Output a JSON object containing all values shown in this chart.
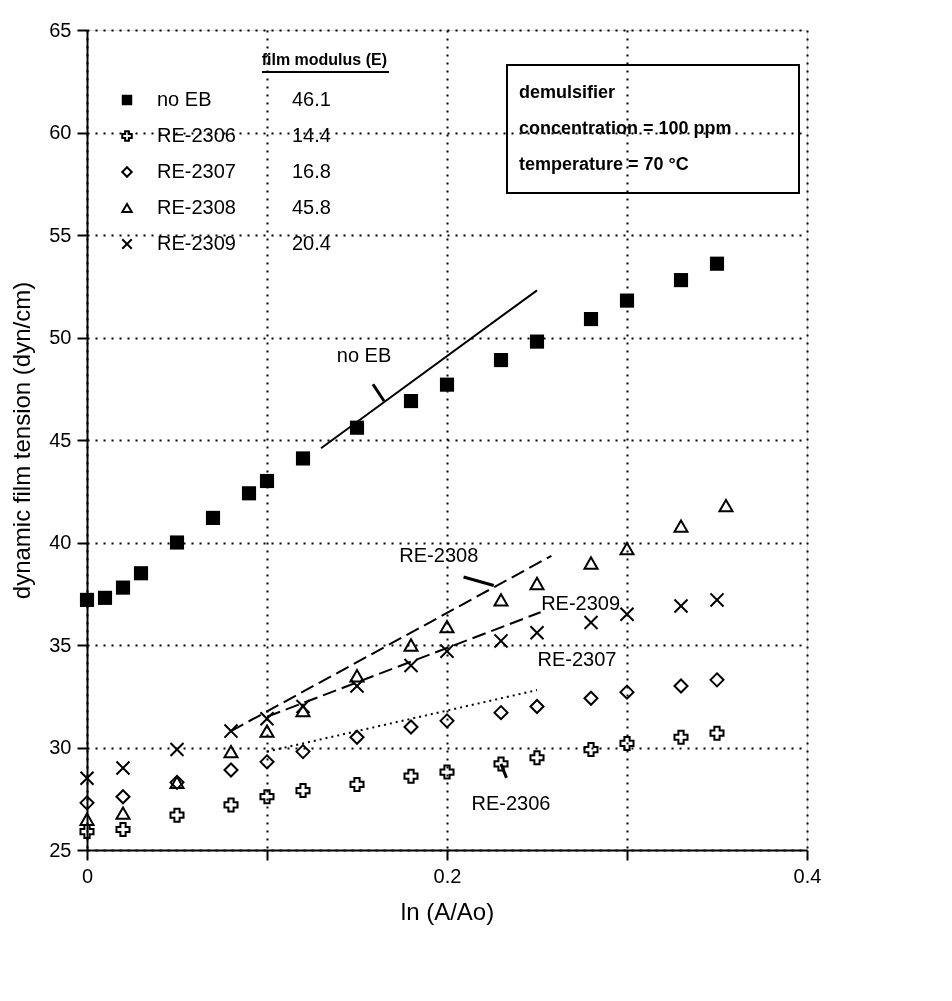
{
  "chart_data": {
    "type": "scatter",
    "xlabel": "ln (A/Ao)",
    "ylabel": "dynamic film tension (dyn/cm)",
    "xlim": [
      0,
      0.4
    ],
    "xticks": [
      0,
      {
        "value": 0.1,
        "label": null
      },
      0.2,
      {
        "value": 0.3,
        "label": null
      },
      0.4
    ],
    "ylim": [
      25,
      65
    ],
    "yticks": [
      25,
      30,
      35,
      40,
      45,
      50,
      55,
      60,
      65
    ],
    "grid": true,
    "legend": "top left",
    "legend_title": "film modulus (E)",
    "series": [
      {
        "name": "no EB",
        "color": "#000000",
        "marker": "square",
        "x": [
          0,
          0.01,
          0.02,
          0.03,
          0.05,
          0.07,
          0.09,
          0.1,
          0.12,
          0.15,
          0.18,
          0.2,
          0.23,
          0.25,
          0.28,
          0.3,
          0.33,
          0.35
        ],
        "values": [
          37.2,
          37.3,
          37.8,
          38.5,
          40.0,
          41.2,
          42.4,
          43.0,
          44.1,
          45.6,
          46.9,
          47.7,
          48.9,
          49.8,
          50.9,
          51.8,
          52.8,
          53.6
        ]
      },
      {
        "name": "RE-2306",
        "color": "#000000",
        "marker": "cross",
        "x": [
          0,
          0.02,
          0.05,
          0.08,
          0.1,
          0.12,
          0.15,
          0.18,
          0.2,
          0.23,
          0.25,
          0.28,
          0.3,
          0.33,
          0.35
        ],
        "values": [
          25.9,
          26.0,
          26.7,
          27.2,
          27.6,
          27.9,
          28.2,
          28.6,
          28.8,
          29.2,
          29.5,
          29.9,
          30.2,
          30.5,
          30.7
        ]
      },
      {
        "name": "RE-2307",
        "color": "#000000",
        "marker": "diamond",
        "x": [
          0,
          0.02,
          0.05,
          0.08,
          0.1,
          0.12,
          0.15,
          0.18,
          0.2,
          0.23,
          0.25,
          0.28,
          0.3,
          0.33,
          0.35
        ],
        "values": [
          27.3,
          27.6,
          28.3,
          28.9,
          29.3,
          29.8,
          30.5,
          31.0,
          31.3,
          31.7,
          32.0,
          32.4,
          32.7,
          33.0,
          33.3
        ]
      },
      {
        "name": "RE-2308",
        "color": "#000000",
        "marker": "triangle",
        "x": [
          0,
          0.02,
          0.05,
          0.08,
          0.1,
          0.12,
          0.15,
          0.18,
          0.2,
          0.23,
          0.25,
          0.28,
          0.3,
          0.33,
          0.355
        ],
        "values": [
          26.5,
          26.8,
          28.3,
          29.8,
          30.8,
          31.8,
          33.5,
          35.0,
          35.9,
          37.2,
          38.0,
          39.0,
          39.7,
          40.8,
          41.8
        ]
      },
      {
        "name": "RE-2309",
        "color": "#000000",
        "marker": "x",
        "x": [
          0,
          0.02,
          0.05,
          0.08,
          0.1,
          0.12,
          0.15,
          0.18,
          0.2,
          0.23,
          0.25,
          0.28,
          0.3,
          0.33,
          0.35
        ],
        "values": [
          28.5,
          29.0,
          29.9,
          30.8,
          31.4,
          32.0,
          33.0,
          34.0,
          34.7,
          35.2,
          35.6,
          36.1,
          36.5,
          36.9,
          37.2
        ]
      },
      {
        "type": "line",
        "color": "#000000",
        "line_style": "solid",
        "x": [
          0.13,
          0.25
        ],
        "values": [
          44.6,
          52.3
        ]
      },
      {
        "type": "line",
        "color": "#000000",
        "line_style": "dashed",
        "x": [
          0.08,
          0.258
        ],
        "values": [
          30.8,
          39.35
        ]
      },
      {
        "type": "line",
        "color": "#000000",
        "line_style": "dashed",
        "x": [
          0.1,
          0.252
        ],
        "values": [
          31.5,
          36.6
        ]
      },
      {
        "type": "line",
        "color": "#000000",
        "line_style": "dotted",
        "x": [
          0.1,
          0.25
        ],
        "values": [
          29.8,
          32.8
        ]
      }
    ],
    "annotations": [
      "46.1",
      "14.4",
      "16.8",
      "45.8",
      "20.4",
      "demulsifier",
      "concentration = 100 ppm",
      "temperature = 70 °C",
      {
        "text": "no EB",
        "x": 0.165,
        "y": 46.9
      },
      {
        "text": "RE-2308",
        "x": 0.226,
        "y": 37.9
      },
      {
        "text": "RE-2309",
        "x": 0.252,
        "y": 36.6
      },
      {
        "text": "RE-2307",
        "x": 0.25,
        "y": 32.8
      },
      {
        "text": "RE-2306",
        "x": 0.23,
        "y": 29.2
      }
    ]
  }
}
